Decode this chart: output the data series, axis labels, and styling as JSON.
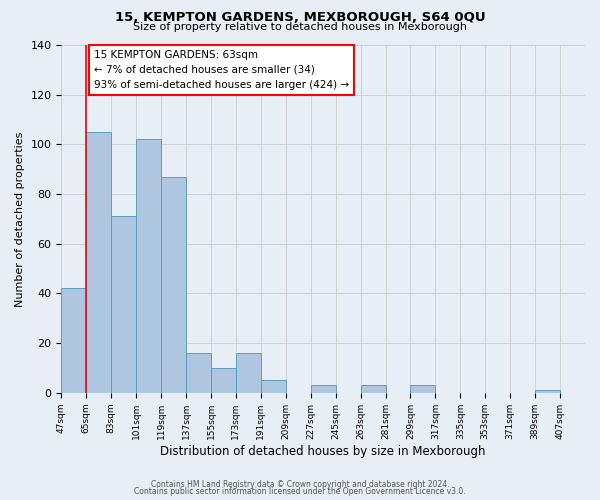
{
  "title": "15, KEMPTON GARDENS, MEXBOROUGH, S64 0QU",
  "subtitle": "Size of property relative to detached houses in Mexborough",
  "xlabel": "Distribution of detached houses by size in Mexborough",
  "ylabel": "Number of detached properties",
  "bar_labels": [
    "47sqm",
    "65sqm",
    "83sqm",
    "101sqm",
    "119sqm",
    "137sqm",
    "155sqm",
    "173sqm",
    "191sqm",
    "209sqm",
    "227sqm",
    "245sqm",
    "263sqm",
    "281sqm",
    "299sqm",
    "317sqm",
    "335sqm",
    "353sqm",
    "371sqm",
    "389sqm",
    "407sqm"
  ],
  "bar_values": [
    42,
    105,
    71,
    102,
    87,
    16,
    10,
    16,
    5,
    0,
    3,
    0,
    3,
    0,
    3,
    0,
    0,
    0,
    0,
    1,
    0
  ],
  "bar_color": "#aec6df",
  "bar_edge_color": "#5a9fc0",
  "bar_linewidth": 0.7,
  "vline_x": 1,
  "vline_color": "red",
  "vline_linewidth": 1.2,
  "annotation_box_text": "15 KEMPTON GARDENS: 63sqm\n← 7% of detached houses are smaller (34)\n93% of semi-detached houses are larger (424) →",
  "ylim": [
    0,
    140
  ],
  "yticks": [
    0,
    20,
    40,
    60,
    80,
    100,
    120,
    140
  ],
  "grid_color": "#cccccc",
  "bg_color": "#e8eef5",
  "footer1": "Contains HM Land Registry data © Crown copyright and database right 2024.",
  "footer2": "Contains public sector information licensed under the Open Government Licence v3.0."
}
